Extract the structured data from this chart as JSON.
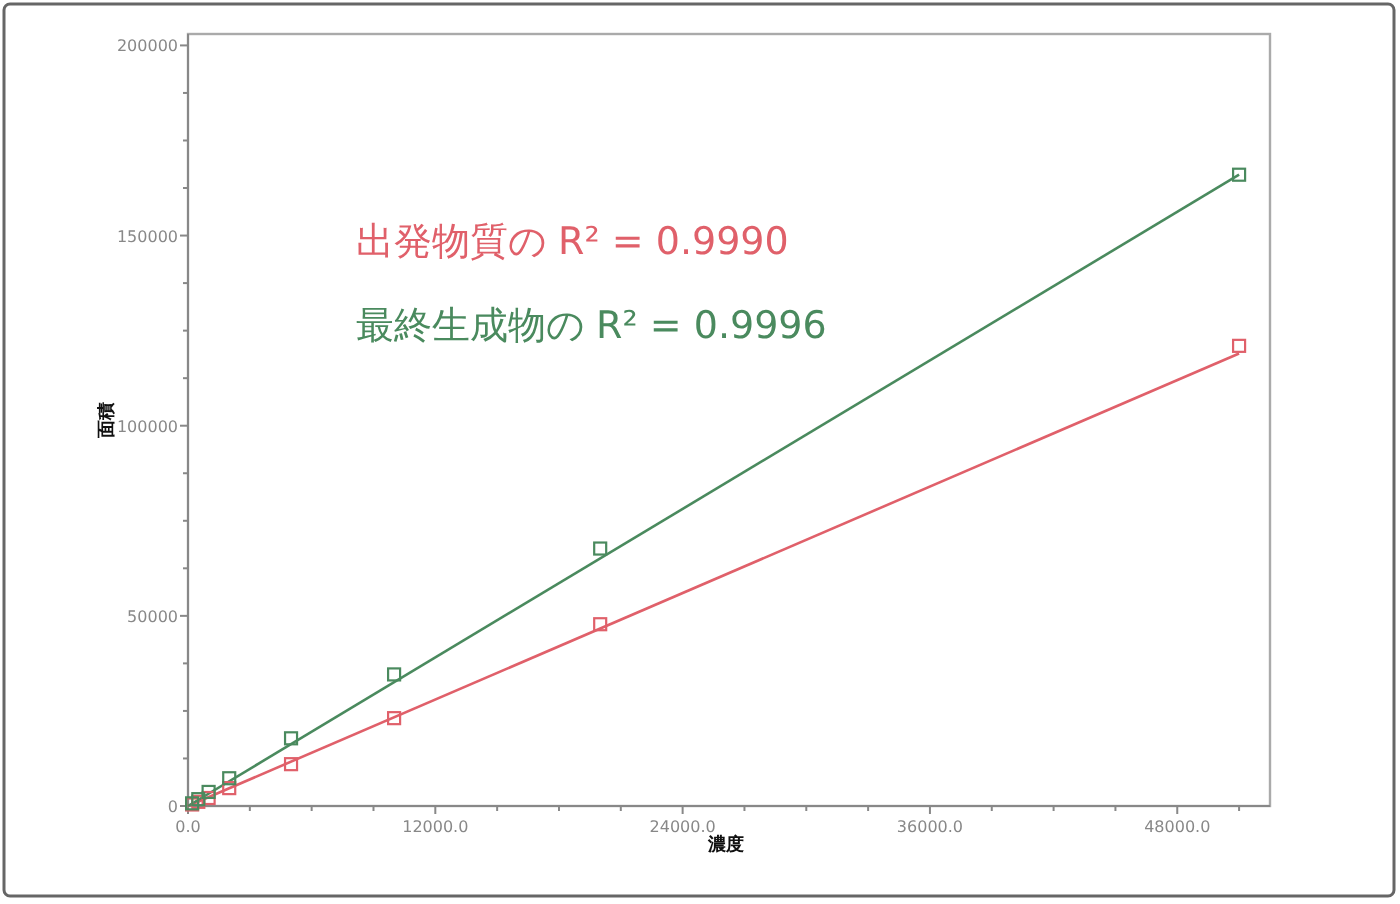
{
  "chart_data": {
    "type": "scatter",
    "xlabel": "濃度",
    "ylabel": "面積",
    "xlim": [
      0,
      52500
    ],
    "ylim": [
      0,
      203000
    ],
    "xticks": [
      {
        "value": 0,
        "label": "0.0"
      },
      {
        "value": 3000,
        "label": null
      },
      {
        "value": 6000,
        "label": null
      },
      {
        "value": 9000,
        "label": null
      },
      {
        "value": 12000,
        "label": "12000.0"
      },
      {
        "value": 15000,
        "label": null
      },
      {
        "value": 18000,
        "label": null
      },
      {
        "value": 21000,
        "label": null
      },
      {
        "value": 24000,
        "label": "24000.0"
      },
      {
        "value": 27000,
        "label": null
      },
      {
        "value": 30000,
        "label": null
      },
      {
        "value": 33000,
        "label": null
      },
      {
        "value": 36000,
        "label": "36000.0"
      },
      {
        "value": 39000,
        "label": null
      },
      {
        "value": 42000,
        "label": null
      },
      {
        "value": 45000,
        "label": null
      },
      {
        "value": 48000,
        "label": "48000.0"
      },
      {
        "value": 51000,
        "label": null
      }
    ],
    "yticks": [
      0,
      {
        "value": 12500,
        "label": null
      },
      {
        "value": 25000,
        "label": null
      },
      {
        "value": 37500,
        "label": null
      },
      50000,
      {
        "value": 62500,
        "label": null
      },
      {
        "value": 75000,
        "label": null
      },
      {
        "value": 87500,
        "label": null
      },
      100000,
      {
        "value": 112500,
        "label": null
      },
      {
        "value": 125000,
        "label": null
      },
      {
        "value": 137500,
        "label": null
      },
      150000,
      {
        "value": 162500,
        "label": null
      },
      {
        "value": 175000,
        "label": null
      },
      {
        "value": 187500,
        "label": null
      },
      200000
    ],
    "marker": "square",
    "legend": "top left",
    "series": [
      {
        "name": "出発物質の R² = 0.9990",
        "color": "#e0606a",
        "type": "line",
        "marker": "none",
        "x": [
          0,
          51000
        ],
        "values": [
          0,
          119000
        ]
      },
      {
        "name": "最終生成物の R² = 0.9996",
        "color": "#4a8a5e",
        "type": "line",
        "marker": "none",
        "x": [
          0,
          51000
        ],
        "values": [
          0,
          166000
        ]
      },
      {
        "color": "#e0606a",
        "x": [
          200,
          500,
          1000,
          2000,
          5000,
          10000,
          20000,
          51000
        ],
        "values": [
          400,
          1100,
          2100,
          4700,
          11000,
          23100,
          47800,
          121000
        ]
      },
      {
        "color": "#4a8a5e",
        "x": [
          200,
          500,
          1000,
          2000,
          5000,
          10000,
          20000,
          51000
        ],
        "values": [
          700,
          1800,
          3700,
          7300,
          17800,
          34600,
          67700,
          166000
        ]
      }
    ]
  }
}
